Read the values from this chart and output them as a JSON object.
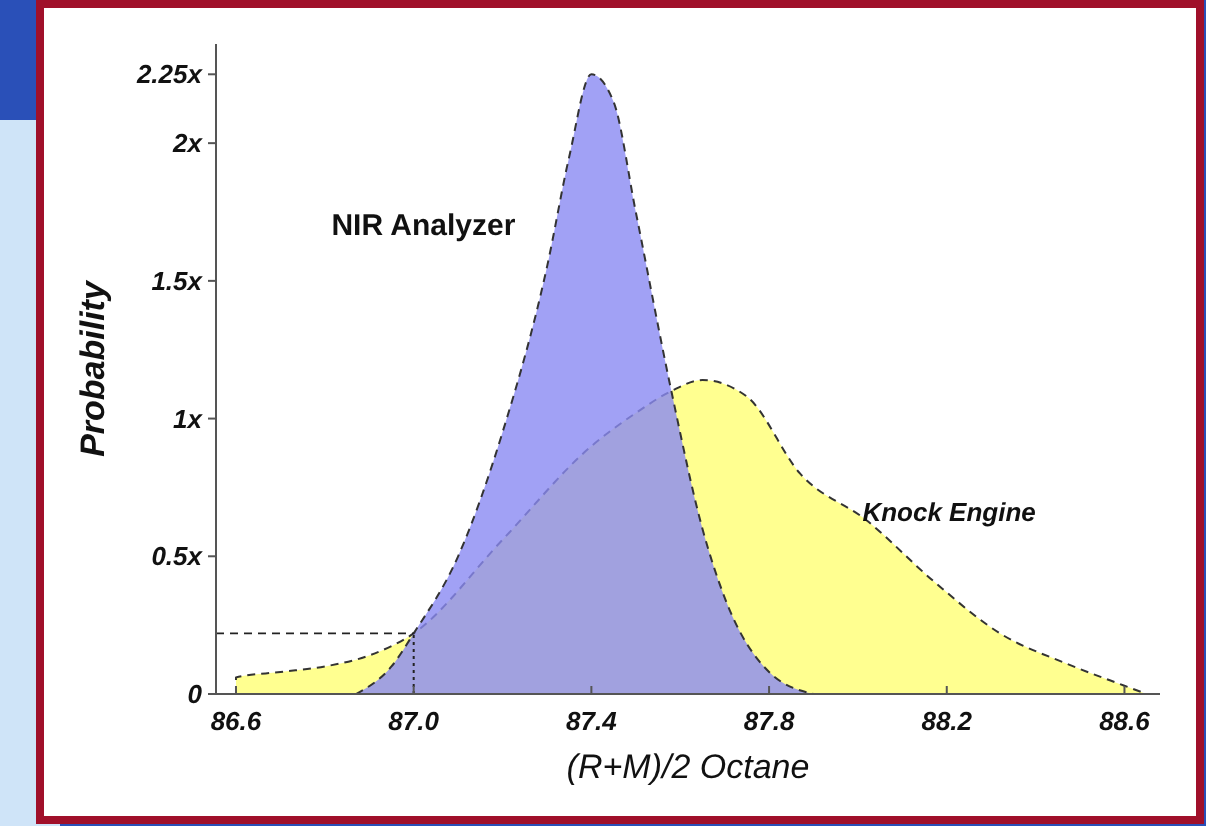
{
  "chart_data": {
    "type": "area",
    "xlabel": "(R+M)/2 Octane",
    "ylabel": "Probability",
    "xlim": [
      86.555,
      88.68
    ],
    "ylim": [
      0,
      2.36
    ],
    "xticks": [
      86.6,
      {
        "value": 87,
        "label": "87.0"
      },
      87.4,
      87.8,
      88.2,
      88.6
    ],
    "yticks": [
      0,
      {
        "value": 0.5,
        "label": "0.5x"
      },
      {
        "value": 1,
        "label": "1x"
      },
      {
        "value": 1.5,
        "label": "1.5x"
      },
      {
        "value": 2,
        "label": "2x"
      },
      {
        "value": 2.25,
        "label": "2.25x"
      }
    ],
    "grid": false,
    "legend": false,
    "line_style": "dashed",
    "series": [
      {
        "name": "Knock Engine",
        "color": "#ffff90",
        "x": [
          86.6,
          86.6,
          86.7,
          86.8,
          86.9,
          87.0,
          87.2,
          87.4,
          87.5,
          87.58,
          87.65,
          87.75,
          87.87,
          88.02,
          88.17,
          88.32,
          88.47,
          88.6,
          88.65
        ],
        "values": [
          0,
          0.06,
          0.08,
          0.1,
          0.14,
          0.22,
          0.56,
          0.9,
          1.02,
          1.1,
          1.14,
          1.08,
          0.8,
          0.63,
          0.41,
          0.22,
          0.11,
          0.03,
          0
        ]
      },
      {
        "name": "NIR Analyzer",
        "color": "#8a8af2",
        "x": [
          86.87,
          86.95,
          87.0,
          87.1,
          87.2,
          87.3,
          87.35,
          87.4,
          87.45,
          87.5,
          87.58,
          87.65,
          87.7,
          87.8,
          87.9
        ],
        "values": [
          0,
          0.1,
          0.22,
          0.5,
          0.95,
          1.55,
          1.95,
          2.25,
          2.15,
          1.75,
          1.1,
          0.6,
          0.35,
          0.08,
          0
        ]
      }
    ],
    "ref_lines": [
      {
        "axis": "x",
        "value": 87.0,
        "line_style": "dotted"
      },
      {
        "axis": "y",
        "value": 0.22,
        "line_style": "dashed"
      }
    ]
  }
}
